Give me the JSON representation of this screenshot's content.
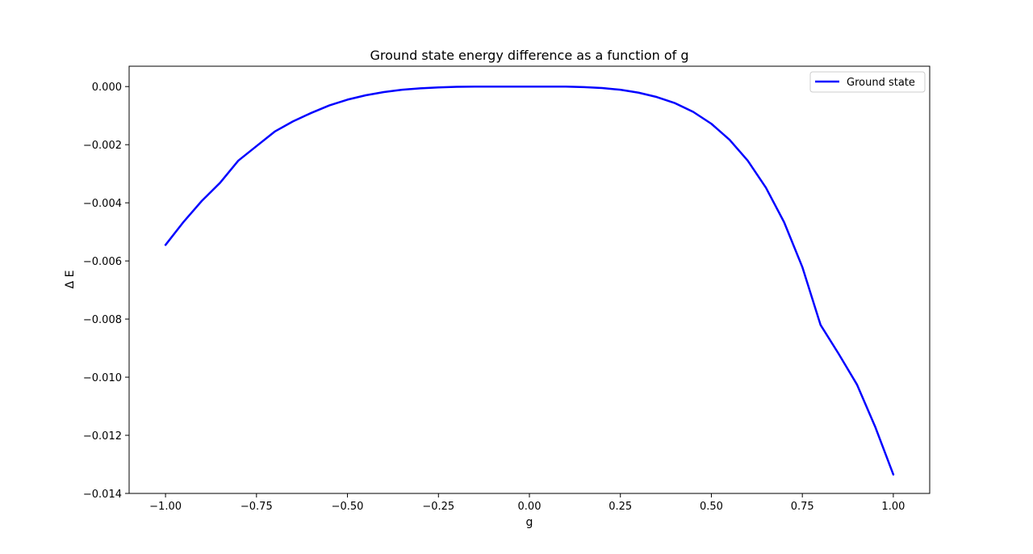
{
  "chart_data": {
    "type": "line",
    "title": "Ground state energy difference as a function of g",
    "xlabel": "g",
    "ylabel": "Δ E",
    "xlim": [
      -1.1,
      1.1
    ],
    "ylim": [
      -0.014,
      0.0007
    ],
    "x_ticks": [
      -1.0,
      -0.75,
      -0.5,
      -0.25,
      0.0,
      0.25,
      0.5,
      0.75,
      1.0
    ],
    "x_tick_labels": [
      "−1.00",
      "−0.75",
      "−0.50",
      "−0.25",
      "0.00",
      "0.25",
      "0.50",
      "0.75",
      "1.00"
    ],
    "y_ticks": [
      0.0,
      -0.002,
      -0.004,
      -0.006,
      -0.008,
      -0.01,
      -0.012,
      -0.014
    ],
    "y_tick_labels": [
      "0.000",
      "−0.002",
      "−0.004",
      "−0.006",
      "−0.008",
      "−0.010",
      "−0.012",
      "−0.014"
    ],
    "grid": false,
    "legend_position": "top-right",
    "series": [
      {
        "name": "Ground state",
        "color": "#0000ff",
        "x": [
          -1.0,
          -0.95,
          -0.9,
          -0.85,
          -0.8,
          -0.75,
          -0.7,
          -0.65,
          -0.6,
          -0.55,
          -0.5,
          -0.45,
          -0.4,
          -0.35,
          -0.3,
          -0.25,
          -0.2,
          -0.15,
          -0.1,
          -0.05,
          0.0,
          0.05,
          0.1,
          0.15,
          0.2,
          0.25,
          0.3,
          0.35,
          0.4,
          0.45,
          0.5,
          0.55,
          0.6,
          0.65,
          0.7,
          0.75,
          0.8,
          0.85,
          0.9,
          0.95,
          1.0
        ],
        "y": [
          -0.00545,
          -0.00465,
          -0.00393,
          -0.00331,
          -0.00255,
          -0.00205,
          -0.00155,
          -0.0012,
          -0.00091,
          -0.00065,
          -0.00045,
          -0.0003,
          -0.00019,
          -0.00011,
          -6e-05,
          -3e-05,
          -1e-05,
          0.0,
          0.0,
          0.0,
          0.0,
          0.0,
          0.0,
          -2e-05,
          -5e-05,
          -0.00011,
          -0.00021,
          -0.00036,
          -0.00057,
          -0.00087,
          -0.00128,
          -0.00183,
          -0.00255,
          -0.00348,
          -0.00467,
          -0.00621,
          -0.0082,
          -0.0092,
          -0.01025,
          -0.0117,
          -0.01335
        ]
      }
    ]
  }
}
